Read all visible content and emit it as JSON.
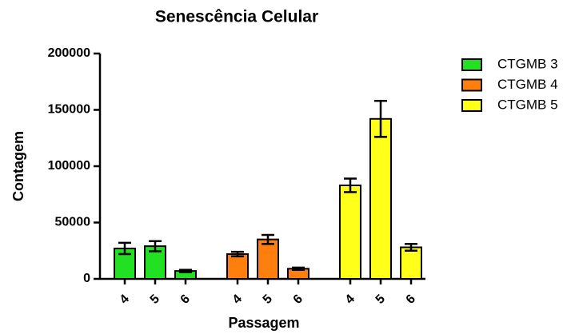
{
  "chart_data": {
    "type": "bar",
    "title": "Senescência Celular",
    "xlabel": "Passagem",
    "ylabel": "Contagem",
    "categories": [
      "4",
      "5",
      "6"
    ],
    "series": [
      {
        "name": "CTGMB 3",
        "color": "#22e022",
        "values": [
          27000,
          29000,
          7000
        ],
        "errors": [
          5000,
          4500,
          1000
        ]
      },
      {
        "name": "CTGMB 4",
        "color": "#ff7f0e",
        "values": [
          22000,
          35000,
          9000
        ],
        "errors": [
          2000,
          4000,
          1000
        ]
      },
      {
        "name": "CTGMB 5",
        "color": "#ffff1a",
        "values": [
          83000,
          142000,
          28000
        ],
        "errors": [
          6000,
          16000,
          3000
        ]
      }
    ],
    "ylim": [
      0,
      200000
    ],
    "yticks": [
      0,
      50000,
      100000,
      150000,
      200000
    ],
    "legend": "right"
  }
}
